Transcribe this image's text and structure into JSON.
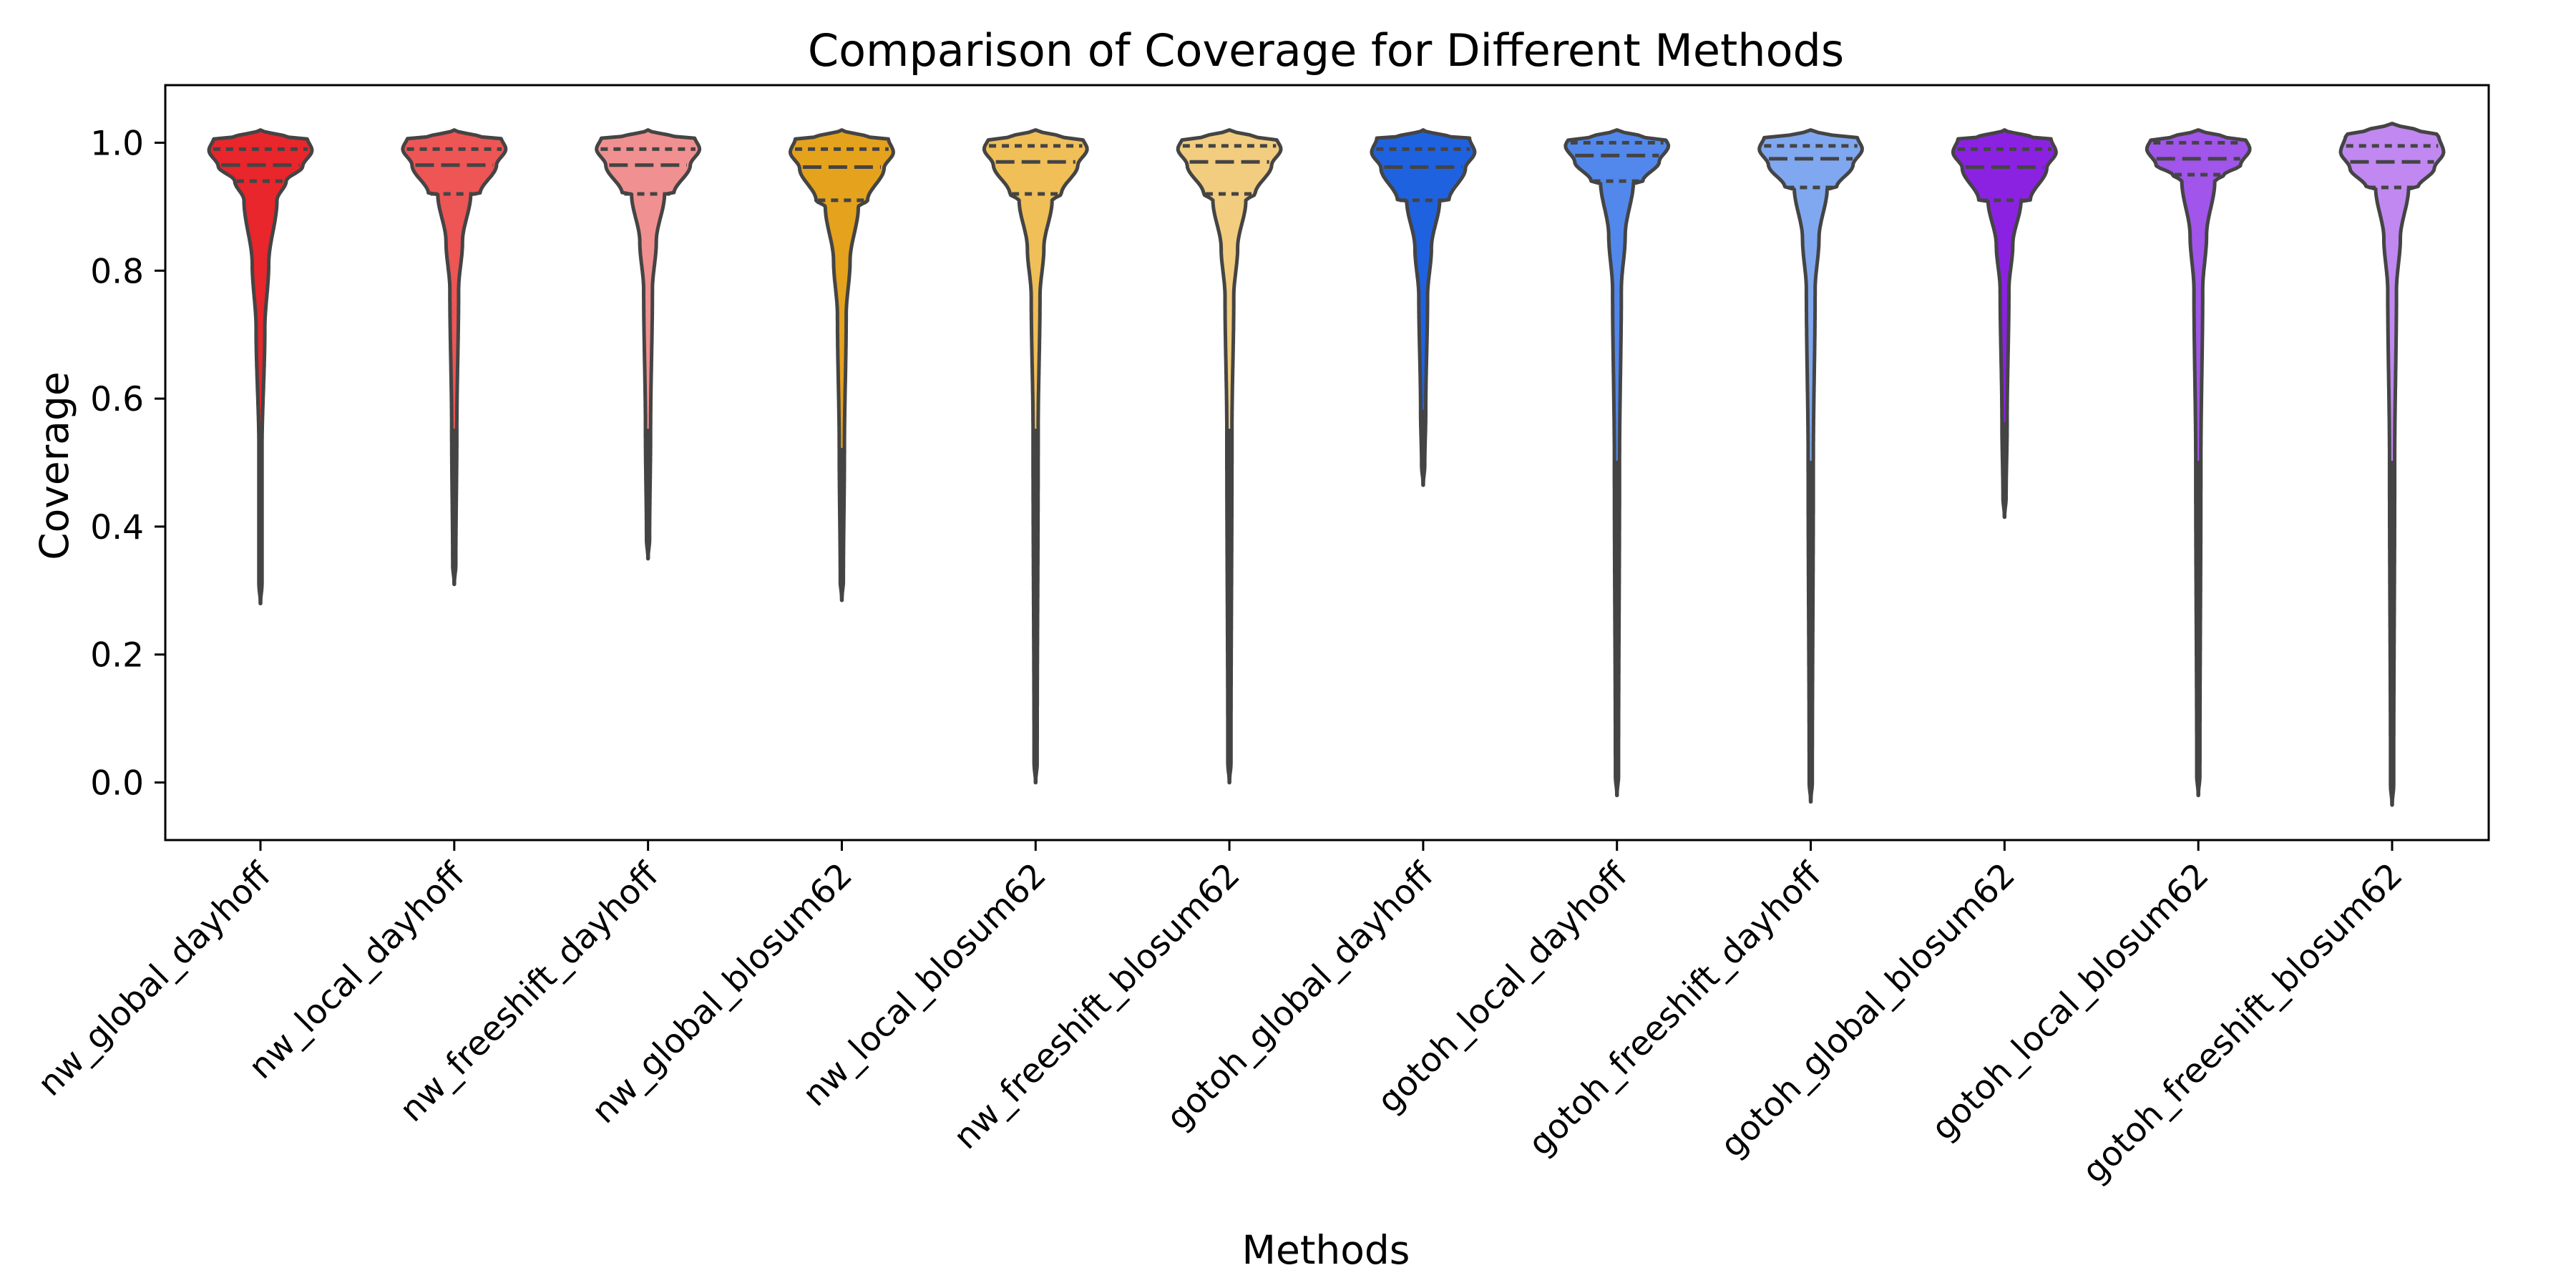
{
  "chart_data": {
    "type": "violin",
    "title": "Comparison of Coverage for Different Methods",
    "xlabel": "Methods",
    "ylabel": "Coverage",
    "ylim": [
      -0.09,
      1.09
    ],
    "yticks": [
      "0.0",
      "0.2",
      "0.4",
      "0.6",
      "0.8",
      "1.0"
    ],
    "grid": false,
    "series": [
      {
        "name": "nw_global_dayhoff",
        "color": "#e8262c",
        "min": 0.28,
        "max": 1.02,
        "q1": 0.94,
        "median": 0.965,
        "q3": 0.99,
        "mode": 0.988,
        "bulb": 0.91,
        "neck": 0.71,
        "tail_end": 0.52,
        "tail_w": 0.03
      },
      {
        "name": "nw_local_dayhoff",
        "color": "#ee5555",
        "min": 0.31,
        "max": 1.02,
        "q1": 0.92,
        "median": 0.965,
        "q3": 0.99,
        "mode": 0.99,
        "bulb": 0.92,
        "neck": 0.77,
        "tail_end": 0.55,
        "tail_w": 0.05
      },
      {
        "name": "nw_freeshift_dayhoff",
        "color": "#f19090",
        "min": 0.35,
        "max": 1.02,
        "q1": 0.92,
        "median": 0.965,
        "q3": 0.99,
        "mode": 0.99,
        "bulb": 0.92,
        "neck": 0.77,
        "tail_end": 0.55,
        "tail_w": 0.05
      },
      {
        "name": "nw_global_blosum62",
        "color": "#e5a21d",
        "min": 0.285,
        "max": 1.02,
        "q1": 0.91,
        "median": 0.962,
        "q3": 0.99,
        "mode": 0.985,
        "bulb": 0.9,
        "neck": 0.73,
        "tail_end": 0.52,
        "tail_w": 0.05
      },
      {
        "name": "nw_local_blosum62",
        "color": "#f0bf58",
        "min": 0.0,
        "max": 1.02,
        "q1": 0.92,
        "median": 0.97,
        "q3": 0.995,
        "mode": 0.99,
        "bulb": 0.91,
        "neck": 0.76,
        "tail_end": 0.55,
        "tail_w": 0.05
      },
      {
        "name": "nw_freeshift_blosum62",
        "color": "#f2cd80",
        "min": 0.0,
        "max": 1.02,
        "q1": 0.92,
        "median": 0.97,
        "q3": 0.995,
        "mode": 0.99,
        "bulb": 0.91,
        "neck": 0.76,
        "tail_end": 0.55,
        "tail_w": 0.05
      },
      {
        "name": "gotoh_global_dayhoff",
        "color": "#1f62e0",
        "min": 0.465,
        "max": 1.02,
        "q1": 0.91,
        "median": 0.962,
        "q3": 0.99,
        "mode": 0.985,
        "bulb": 0.91,
        "neck": 0.76,
        "tail_end": 0.58,
        "tail_w": 0.05
      },
      {
        "name": "gotoh_local_dayhoff",
        "color": "#5288ec",
        "min": -0.02,
        "max": 1.02,
        "q1": 0.94,
        "median": 0.98,
        "q3": 1.0,
        "mode": 0.995,
        "bulb": 0.94,
        "neck": 0.77,
        "tail_end": 0.5,
        "tail_w": 0.05
      },
      {
        "name": "gotoh_freeshift_dayhoff",
        "color": "#80a8f0",
        "min": -0.03,
        "max": 1.02,
        "q1": 0.93,
        "median": 0.975,
        "q3": 0.995,
        "mode": 0.99,
        "bulb": 0.93,
        "neck": 0.77,
        "tail_end": 0.5,
        "tail_w": 0.05
      },
      {
        "name": "gotoh_global_blosum62",
        "color": "#8b22e2",
        "min": 0.415,
        "max": 1.02,
        "q1": 0.91,
        "median": 0.962,
        "q3": 0.99,
        "mode": 0.985,
        "bulb": 0.91,
        "neck": 0.77,
        "tail_end": 0.56,
        "tail_w": 0.05
      },
      {
        "name": "gotoh_local_blosum62",
        "color": "#a155ea",
        "min": -0.02,
        "max": 1.02,
        "q1": 0.95,
        "median": 0.975,
        "q3": 1.0,
        "mode": 0.99,
        "bulb": 0.94,
        "neck": 0.77,
        "tail_end": 0.5,
        "tail_w": 0.05
      },
      {
        "name": "gotoh_freeshift_blosum62",
        "color": "#c088f0",
        "min": -0.035,
        "max": 1.03,
        "q1": 0.93,
        "median": 0.97,
        "q3": 0.995,
        "mode": 0.985,
        "bulb": 0.93,
        "neck": 0.77,
        "tail_end": 0.5,
        "tail_w": 0.05
      }
    ]
  }
}
